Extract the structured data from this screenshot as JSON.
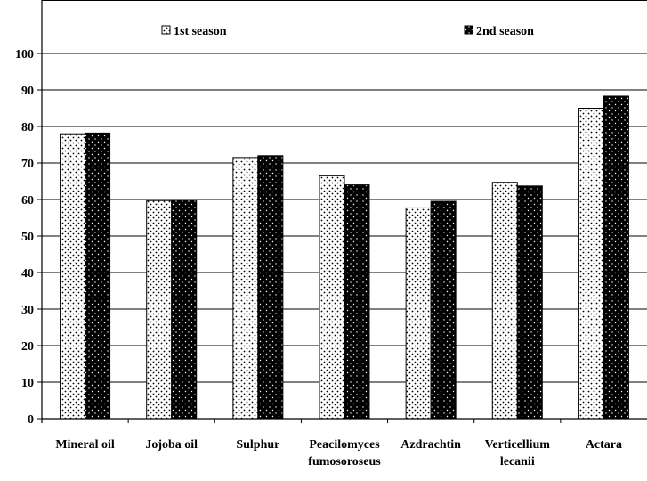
{
  "chart_data": {
    "type": "bar",
    "title": "",
    "xlabel": "",
    "ylabel": "",
    "ylim": [
      0,
      100
    ],
    "yticks": [
      0,
      10,
      20,
      30,
      40,
      50,
      60,
      70,
      80,
      90,
      100
    ],
    "grid": true,
    "legend_position": "top",
    "categories": [
      [
        "Mineral oil"
      ],
      [
        "Jojoba oil"
      ],
      [
        "Sulphur"
      ],
      [
        "Peacilomyces",
        "fumosoroseus"
      ],
      [
        "Azdrachtin"
      ],
      [
        "Verticellium",
        "lecanii"
      ],
      [
        "Actara"
      ]
    ],
    "series": [
      {
        "name": "1st season",
        "pattern": "light-dotted",
        "values": [
          78,
          59.7,
          71.5,
          66.5,
          57.7,
          64.7,
          85
        ]
      },
      {
        "name": "2nd season",
        "pattern": "dark-dotted",
        "values": [
          78.2,
          59.8,
          72,
          64,
          59.5,
          63.7,
          88.3
        ]
      }
    ],
    "colors": {
      "bar_border": "#000000",
      "grid": "#000000",
      "light_fill": "#ffffff",
      "dark_fill": "#000000"
    }
  }
}
